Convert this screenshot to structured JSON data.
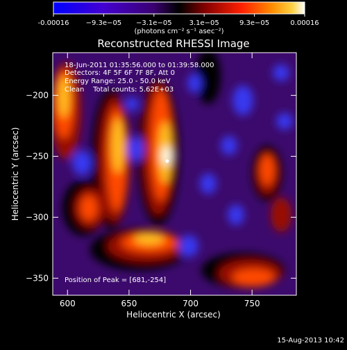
{
  "colorbar": {
    "ticks": [
      "-0.00016",
      "−9.3e−05",
      "−3.1e−05",
      "3.1e−05",
      "9.3e−05",
      "0.00016"
    ],
    "unit": "(photons cm⁻² s⁻¹ asec⁻²)",
    "colors": [
      "#0000ff",
      "#4400d0",
      "#3a0070",
      "#000000",
      "#800000",
      "#ff2000",
      "#ff8c00",
      "#ffd040",
      "#ffffff"
    ]
  },
  "annotations": {
    "time_range": "18-Jun-2011 01:35:56.000 to 01:39:58.000",
    "detectors": "Detectors: 4F 5F 6F 7F 8F, Att 0",
    "energy": "Energy Range: 25.0 - 50.0 keV",
    "clean_counts": "Clean    Total counts: 5.62E+03",
    "peak": "Position of Peak = [681,-254]"
  },
  "footer": {
    "date": "15-Aug-2013 10:42"
  },
  "chart_data": {
    "type": "heatmap",
    "title": "Reconstructed RHESSI Image",
    "xlabel": "Heliocentric X (arcsec)",
    "ylabel": "Heliocentric Y (arcsec)",
    "xlim": [
      588,
      786
    ],
    "ylim": [
      -364,
      -165
    ],
    "xticks": [
      600,
      650,
      700,
      750
    ],
    "yticks": [
      -200,
      -250,
      -300,
      -350
    ],
    "colorbar_range": [
      -0.00016,
      0.00016
    ],
    "peak": [
      681,
      -254
    ],
    "grid": false
  }
}
